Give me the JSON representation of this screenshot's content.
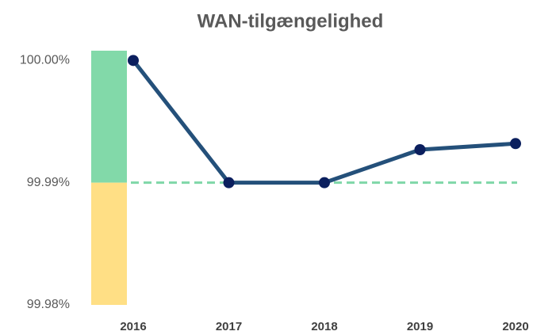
{
  "chart_data": {
    "type": "line",
    "title": "WAN-tilgængelighed",
    "categories": [
      "2016",
      "2017",
      "2018",
      "2019",
      "2020"
    ],
    "series": [
      {
        "name": "WAN-tilgængelighed",
        "color": "#24507a",
        "marker_color": "#0b1f5e",
        "values": [
          100.0,
          99.99,
          99.99,
          99.9927,
          99.9932
        ]
      }
    ],
    "ylim": [
      99.98,
      100.0008
    ],
    "yticks": [
      {
        "value": 99.98,
        "label": "99.98%"
      },
      {
        "value": 99.99,
        "label": "99.99%"
      },
      {
        "value": 100.0,
        "label": "100.00%"
      }
    ],
    "bands": [
      {
        "from": 99.99,
        "to": 100.0008,
        "color": "#82d9a9"
      },
      {
        "from": 99.98,
        "to": 99.99,
        "color": "#ffdf85"
      }
    ],
    "reference_line": {
      "value": 99.99,
      "color": "#7fd7a8",
      "dashed": true
    },
    "grid": false
  }
}
